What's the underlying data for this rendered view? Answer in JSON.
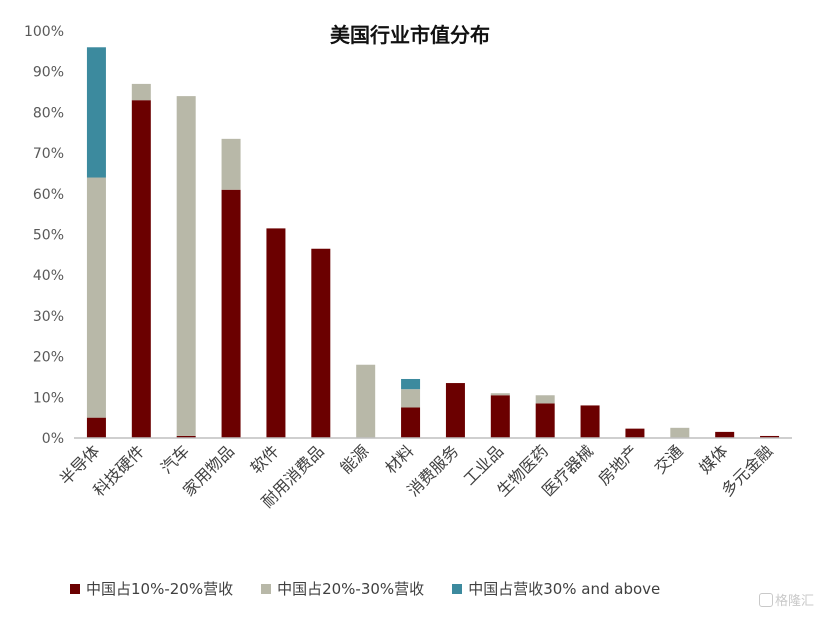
{
  "chart_data": {
    "type": "bar",
    "stacked": true,
    "title": "美国行业市值分布",
    "categories": [
      "半导体",
      "科技硬件",
      "汽车",
      "家用物品",
      "软件",
      "耐用消费品",
      "能源",
      "材料",
      "消费服务",
      "工业品",
      "生物医药",
      "医疗器械",
      "房地产",
      "交通",
      "媒体",
      "多元金融"
    ],
    "series": [
      {
        "name": "中国占10%-20%营收",
        "color": "#6b0000",
        "values": [
          5,
          83,
          0.5,
          61,
          51.5,
          46.5,
          0,
          7.5,
          13.5,
          10.5,
          8.5,
          8,
          2.3,
          0,
          1.5,
          0.5
        ]
      },
      {
        "name": "中国占20%-30%营收",
        "color": "#b8b8a8",
        "values": [
          59,
          4,
          83.5,
          12.5,
          0,
          0,
          18,
          4.5,
          0,
          0.5,
          2,
          0,
          0,
          2.5,
          0,
          0
        ]
      },
      {
        "name": "中国占营收30% and above",
        "color": "#3c8a9e",
        "values": [
          32,
          0,
          0,
          0,
          0,
          0,
          0,
          2.5,
          0,
          0,
          0,
          0,
          0,
          0,
          0,
          0
        ]
      }
    ],
    "yticks": [
      "0%",
      "10%",
      "20%",
      "30%",
      "40%",
      "50%",
      "60%",
      "70%",
      "80%",
      "90%",
      "100%"
    ],
    "ylim": [
      0,
      100
    ],
    "grid": false,
    "legend_position": "bottom"
  },
  "watermark": "格隆汇"
}
